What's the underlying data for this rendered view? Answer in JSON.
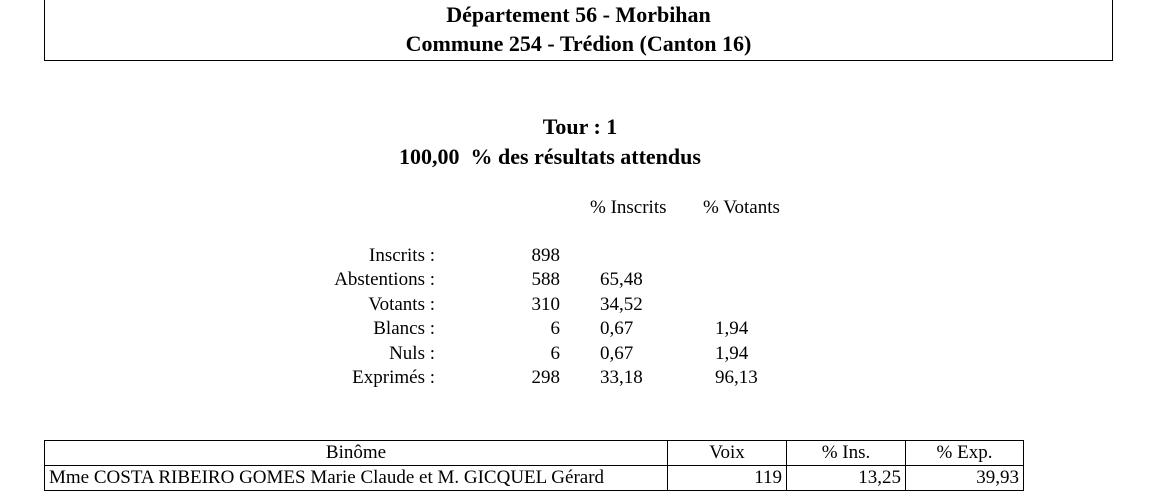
{
  "header": {
    "line1": "Département 56 - Morbihan",
    "line2": "Commune 254 - Trédion (Canton 16)"
  },
  "tour": {
    "title": "Tour : 1",
    "progress": "100,00  % des résultats attendus"
  },
  "stats": {
    "col_inscrits": "% Inscrits",
    "col_votants": "% Votants",
    "rows": [
      {
        "label": "Inscrits :",
        "value": "898",
        "pct_ins": "",
        "pct_vot": ""
      },
      {
        "label": "Abstentions :",
        "value": "588",
        "pct_ins": "65,48",
        "pct_vot": ""
      },
      {
        "label": "Votants :",
        "value": "310",
        "pct_ins": "34,52",
        "pct_vot": ""
      },
      {
        "label": "Blancs :",
        "value": "6",
        "pct_ins": "0,67",
        "pct_vot": "1,94"
      },
      {
        "label": "Nuls :",
        "value": "6",
        "pct_ins": "0,67",
        "pct_vot": "1,94"
      },
      {
        "label": "Exprimés :",
        "value": "298",
        "pct_ins": "33,18",
        "pct_vot": "96,13"
      }
    ]
  },
  "results": {
    "headers": [
      "Binôme",
      "Voix",
      "% Ins.",
      "% Exp."
    ],
    "rows": [
      {
        "name": "Mme COSTA RIBEIRO GOMES Marie Claude et M. GICQUEL Gérard",
        "voix": "119",
        "pct_ins": "13,25",
        "pct_exp": "39,93"
      }
    ]
  }
}
